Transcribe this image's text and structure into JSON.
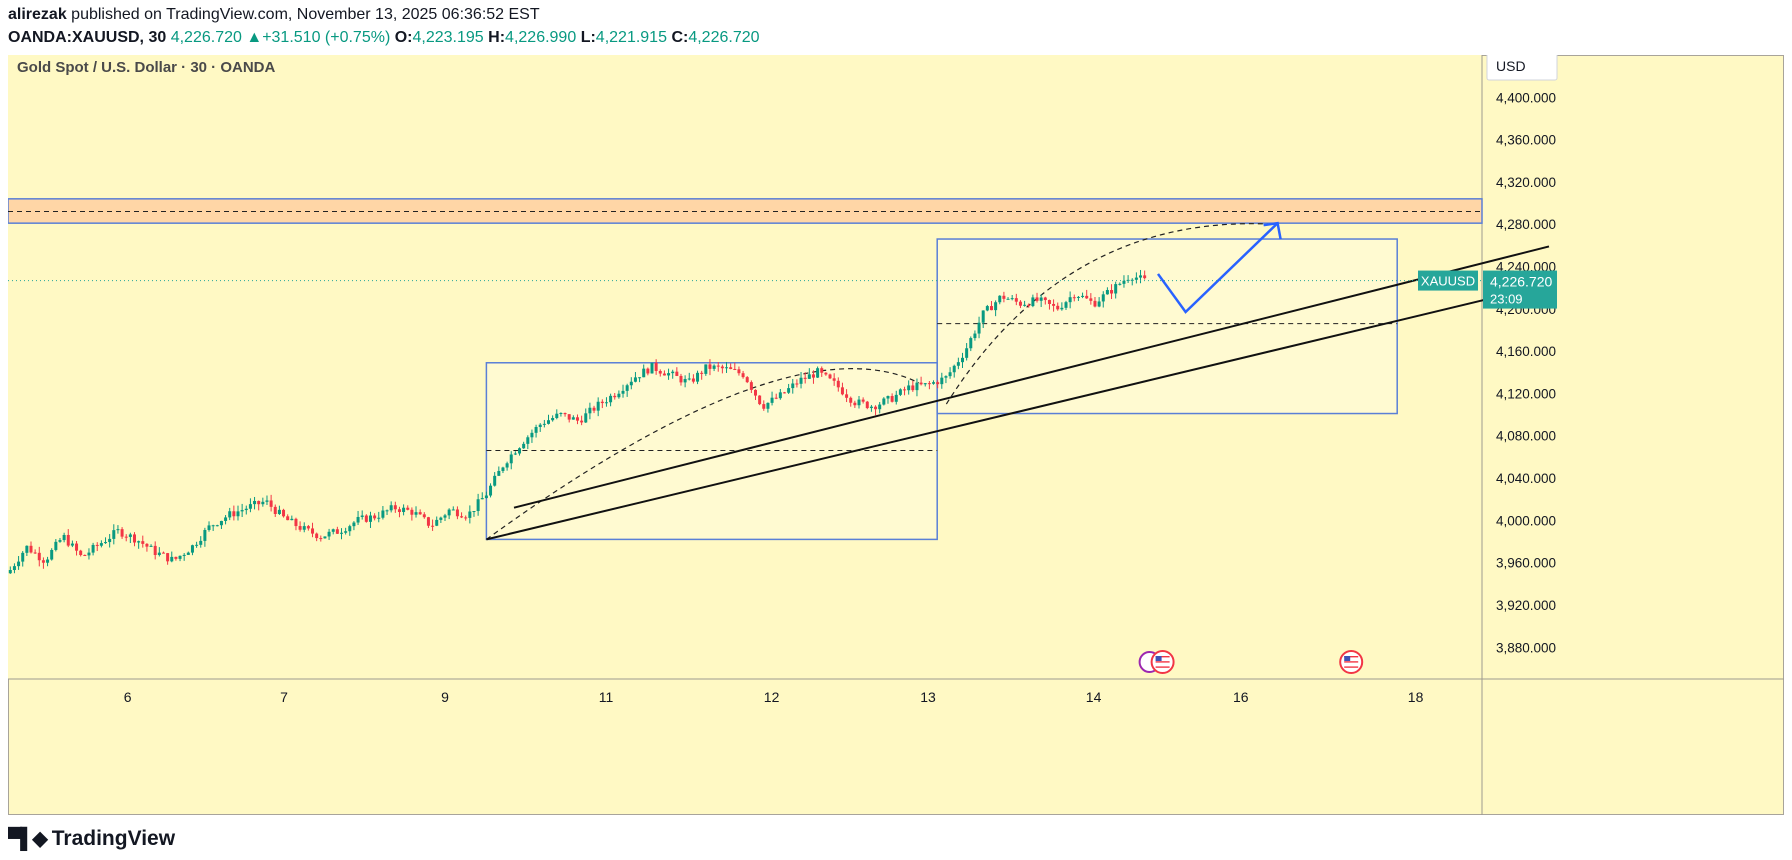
{
  "header": {
    "author": "alirezak",
    "published_text": "published on TradingView.com, November 13, 2025 06:36:52 EST",
    "symbol": "OANDA:XAUUSD, 30",
    "last": "4,226.720",
    "change": "+31.510 (+0.75%)",
    "open_label": "O:",
    "open": "4,223.195",
    "high_label": "H:",
    "high": "4,226.990",
    "low_label": "L:",
    "low": "4,221.915",
    "close_label": "C:",
    "close": "4,226.720"
  },
  "chart_data": {
    "type": "candlestick",
    "title": "Gold Spot / U.S. Dollar · 30 · OANDA",
    "currency": "USD",
    "ylim": [
      3850,
      4440
    ],
    "y_ticks": [
      3880,
      3920,
      3960,
      4000,
      4040,
      4080,
      4120,
      4160,
      4200,
      4240,
      4280,
      4320,
      4360,
      4400
    ],
    "y_tick_labels": [
      "3,880.000",
      "3,920.000",
      "3,960.000",
      "4,000.000",
      "4,040.000",
      "4,080.000",
      "4,120.000",
      "4,160.000",
      "4,200.000",
      "4,240.000",
      "4,280.000",
      "4,320.000",
      "4,360.000",
      "4,400.000"
    ],
    "x_tick_labels": [
      "6",
      "7",
      "9",
      "11",
      "12",
      "13",
      "14",
      "16",
      "18"
    ],
    "current_price": {
      "symbol": "XAUUSD",
      "value": 4226.72,
      "label": "4,226.720",
      "countdown": "23:09"
    },
    "resistance_zone": [
      4281,
      4304
    ],
    "resistance_mid": 4292,
    "price_path": [
      [
        0,
        3950
      ],
      [
        4,
        3975
      ],
      [
        8,
        3962
      ],
      [
        12,
        3985
      ],
      [
        16,
        3965
      ],
      [
        20,
        3978
      ],
      [
        24,
        3990
      ],
      [
        28,
        3982
      ],
      [
        32,
        3970
      ],
      [
        36,
        3962
      ],
      [
        40,
        3975
      ],
      [
        44,
        3995
      ],
      [
        48,
        4005
      ],
      [
        52,
        4012
      ],
      [
        56,
        4018
      ],
      [
        60,
        4002
      ],
      [
        64,
        3992
      ],
      [
        68,
        3985
      ],
      [
        72,
        3990
      ],
      [
        76,
        4000
      ],
      [
        80,
        4004
      ],
      [
        84,
        4012
      ],
      [
        88,
        4008
      ],
      [
        92,
        3995
      ],
      [
        96,
        4010
      ],
      [
        100,
        4005
      ],
      [
        104,
        4025
      ],
      [
        108,
        4055
      ],
      [
        112,
        4075
      ],
      [
        116,
        4092
      ],
      [
        120,
        4100
      ],
      [
        124,
        4094
      ],
      [
        128,
        4108
      ],
      [
        132,
        4120
      ],
      [
        136,
        4135
      ],
      [
        140,
        4145
      ],
      [
        144,
        4138
      ],
      [
        148,
        4130
      ],
      [
        152,
        4145
      ],
      [
        156,
        4143
      ],
      [
        160,
        4138
      ],
      [
        164,
        4108
      ],
      [
        168,
        4118
      ],
      [
        172,
        4132
      ],
      [
        176,
        4140
      ],
      [
        180,
        4128
      ],
      [
        184,
        4112
      ],
      [
        188,
        4108
      ],
      [
        192,
        4115
      ],
      [
        196,
        4126
      ],
      [
        200,
        4128
      ],
      [
        204,
        4135
      ],
      [
        208,
        4160
      ],
      [
        212,
        4195
      ],
      [
        216,
        4212
      ],
      [
        220,
        4205
      ],
      [
        224,
        4208
      ],
      [
        228,
        4200
      ],
      [
        232,
        4215
      ],
      [
        236,
        4205
      ],
      [
        240,
        4218
      ],
      [
        244,
        4232
      ],
      [
        248,
        4225
      ]
    ],
    "boxes": [
      {
        "name": "box-1",
        "t0": 104,
        "t1": 202,
        "p0": 3982,
        "p1": 4149,
        "mid": 4066
      },
      {
        "name": "box-2",
        "t0": 202,
        "t1": 302,
        "p0": 4101,
        "p1": 4266,
        "mid": 4186
      }
    ],
    "channel_lines": [
      {
        "t0": 104,
        "p0": 3982,
        "t1": 332,
        "p1": 4220
      },
      {
        "t0": 110,
        "p0": 4012,
        "t1": 335,
        "p1": 4259
      }
    ],
    "projection": [
      [
        250,
        4233
      ],
      [
        256,
        4197
      ],
      [
        276,
        4281
      ]
    ],
    "arcs": [
      {
        "t0": 104,
        "p0": 3982,
        "tc": 170,
        "pc": 4190,
        "t1": 198,
        "p1": 4130
      },
      {
        "t0": 204,
        "p0": 4110,
        "tc": 230,
        "pc": 4290,
        "t1": 275,
        "p1": 4280
      }
    ],
    "event_markers": [
      {
        "name": "us-flag-1",
        "t": 251
      },
      {
        "name": "us-flag-2",
        "t": 292
      }
    ]
  },
  "footer": {
    "brand": "TradingView"
  }
}
